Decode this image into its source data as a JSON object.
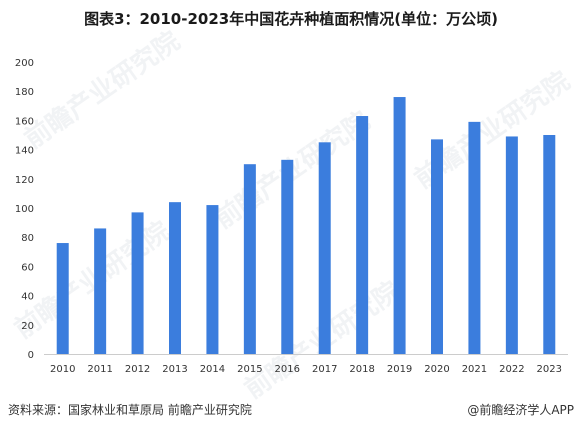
{
  "title": "图表3：2010-2023年中国花卉种植面积情况(单位：万公顷)",
  "footer": {
    "source": "资料来源：国家林业和草原局 前瞻产业研究院",
    "brand": "@前瞻经济学人APP"
  },
  "watermark": "前瞻产业研究院",
  "colors": {
    "bar": "#3b7ddd",
    "axis": "#cccccc",
    "text": "#333333"
  },
  "chart_data": {
    "type": "bar",
    "categories": [
      "2010",
      "2011",
      "2012",
      "2013",
      "2014",
      "2015",
      "2016",
      "2017",
      "2018",
      "2019",
      "2020",
      "2021",
      "2022",
      "2023"
    ],
    "values": [
      76,
      86,
      97,
      104,
      102,
      130,
      133,
      145,
      163,
      176,
      147,
      159,
      149,
      150
    ],
    "yticks": [
      0,
      20,
      40,
      60,
      80,
      100,
      120,
      140,
      160,
      180,
      200
    ],
    "ylim": [
      0,
      200
    ],
    "xlabel": "",
    "ylabel": "",
    "grid": false,
    "legend": "none"
  }
}
